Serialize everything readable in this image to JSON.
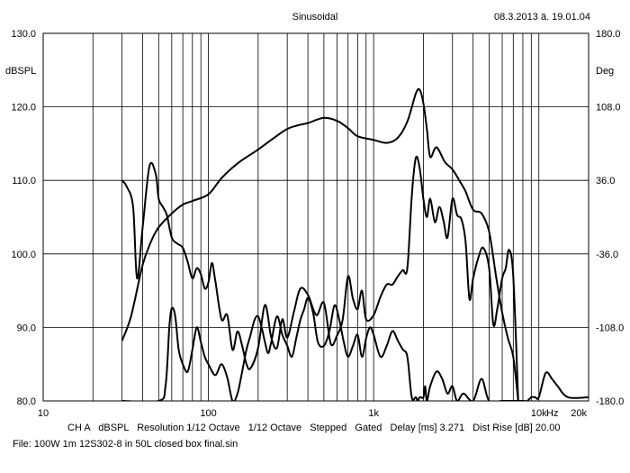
{
  "header": {
    "title": "Sinusoidal",
    "timestamp": "08.3.2013 ä. 19.01.04"
  },
  "footer": {
    "settings": "CH A   dBSPL   Resolution 1/12 Octave   1/12 Octave   Stepped   Gated   Delay [ms] 3.271   Dist Rise [dB] 20.00",
    "file": "File: 100W 1m 12S302-8 in 50L closed box final.sin"
  },
  "colors": {
    "background": "#ffffff",
    "grid": "#000000",
    "curves": "#000000"
  },
  "chart_data": {
    "type": "line",
    "title": "Sinusoidal",
    "x_scale": "log",
    "xlim": [
      10,
      20000
    ],
    "ylim": [
      80,
      130
    ],
    "y2lim": [
      -180,
      180
    ],
    "ylabel": "dBSPL",
    "y2label": "Deg",
    "xunit": "Hz",
    "x_tick_labels": [
      {
        "value": 10,
        "label": "10"
      },
      {
        "value": 100,
        "label": "100"
      },
      {
        "value": 1000,
        "label": "1k"
      },
      {
        "value": 10000,
        "label": "10k"
      },
      {
        "value": 20000,
        "label": "20k"
      }
    ],
    "y_tick_labels": [
      {
        "value": 80,
        "label": "80.0"
      },
      {
        "value": 90,
        "label": "90.0"
      },
      {
        "value": 100,
        "label": "100.0"
      },
      {
        "value": 110,
        "label": "110.0"
      },
      {
        "value": 120,
        "label": "120.0"
      },
      {
        "value": 130,
        "label": "130.0"
      }
    ],
    "y2_tick_labels": [
      {
        "value": -180,
        "label": "-180.0"
      },
      {
        "value": -108,
        "label": "-108.0"
      },
      {
        "value": -36,
        "label": "-36.0"
      },
      {
        "value": 36,
        "label": "36.0"
      },
      {
        "value": 108,
        "label": "108.0"
      },
      {
        "value": 180,
        "label": "180.0"
      }
    ],
    "grid": true,
    "series": [
      {
        "axis": "left",
        "x": [
          30,
          34,
          40,
          45,
          50,
          60,
          70,
          80,
          100,
          120,
          150,
          200,
          250,
          300,
          350,
          400,
          500,
          600,
          700,
          800,
          1000,
          1200,
          1400,
          1600,
          1800,
          1900,
          2000,
          2100,
          2200,
          2400,
          2700,
          3000,
          3300,
          3600,
          4000,
          4500,
          5000,
          5500,
          6000,
          6500,
          7000,
          7500
        ],
        "y": [
          88.2,
          91.5,
          98.5,
          101.7,
          103.6,
          105.5,
          106.7,
          107.2,
          108.1,
          110.3,
          112.3,
          114.2,
          115.8,
          117.0,
          117.5,
          117.8,
          118.5,
          118.1,
          117.1,
          116.0,
          115.5,
          115.1,
          115.8,
          118.0,
          121.8,
          122.3,
          120.5,
          117.0,
          113.2,
          114.5,
          112.5,
          111.5,
          110.0,
          108.5,
          106.0,
          105.5,
          103.0,
          97.0,
          92.0,
          88.5,
          86.0,
          80.0
        ]
      },
      {
        "axis": "right",
        "x": [
          30,
          32,
          35,
          37,
          40,
          44,
          48,
          50,
          53,
          56,
          60,
          65,
          70,
          75,
          80,
          85,
          90,
          95,
          100,
          105,
          110,
          120,
          130,
          140,
          150,
          160,
          170,
          180,
          200,
          220,
          240,
          260,
          280,
          300,
          330,
          360,
          400,
          450,
          500,
          550,
          600,
          650,
          700,
          750,
          800,
          850,
          900,
          1000,
          1100,
          1200,
          1300,
          1400,
          1500,
          1600,
          1700,
          1800,
          1900,
          2000,
          2100,
          2200,
          2350,
          2500,
          2650,
          2800,
          3000,
          3200,
          3400,
          3600,
          3800,
          4000,
          4300,
          4600,
          5000,
          5300,
          5600,
          6000,
          6300,
          6600,
          7000,
          7500
        ],
        "y": [
          36,
          30,
          10,
          -60,
          -10,
          50,
          42,
          18,
          10,
          2,
          -20,
          -26,
          -30,
          -44,
          -60,
          -50,
          -56,
          -70,
          -64,
          -45,
          -62,
          -100,
          -96,
          -130,
          -112,
          -126,
          -144,
          -148,
          -128,
          -86,
          -118,
          -128,
          -100,
          -118,
          -92,
          -70,
          -76,
          -96,
          -84,
          -124,
          -116,
          -100,
          -58,
          -80,
          -90,
          -72,
          -100,
          -96,
          -78,
          -66,
          -66,
          -58,
          -52,
          -50,
          20,
          58,
          48,
          18,
          0,
          18,
          -5,
          10,
          -4,
          -20,
          18,
          2,
          -2,
          -24,
          -80,
          -60,
          -40,
          -30,
          -50,
          -105,
          -90,
          -60,
          -50,
          -32,
          -58,
          -180
        ]
      },
      {
        "axis": "left",
        "x": [
          30,
          50,
          55,
          58,
          60,
          63,
          66,
          70,
          75,
          80,
          85,
          90,
          95,
          100,
          110,
          120,
          130,
          140,
          150,
          160,
          170,
          180,
          190,
          200,
          210,
          220,
          230,
          240,
          260,
          280,
          300,
          320,
          340,
          360,
          380,
          400,
          430,
          460,
          500,
          540,
          580,
          620,
          660,
          700,
          750,
          800,
          850,
          900,
          950,
          1000,
          1100,
          1200,
          1300,
          1400,
          1500,
          1600,
          1700,
          1800,
          1850,
          1900,
          2000,
          2050,
          2100,
          2200,
          2400,
          2600,
          2800,
          3000,
          3200,
          3500,
          4000,
          4500,
          5000,
          6000,
          8000,
          8500,
          9000,
          9500,
          10000,
          11000,
          12000,
          13000,
          15000,
          20000
        ],
        "y": [
          80,
          80,
          82,
          90,
          92.6,
          91.5,
          87,
          85,
          84,
          87,
          90,
          88,
          86,
          85,
          83.5,
          85,
          83.2,
          80,
          81,
          84,
          87,
          89,
          91,
          91.5,
          90,
          88,
          86.5,
          88,
          91.5,
          89,
          87.5,
          86,
          88.5,
          91,
          92.5,
          94,
          92,
          88,
          87.5,
          89.5,
          93,
          91,
          88,
          86,
          87.5,
          89,
          86,
          88.5,
          90,
          89,
          86,
          87.5,
          89.5,
          88.2,
          87,
          86,
          80.5,
          80.5,
          80,
          80.5,
          80.5,
          82,
          80,
          82,
          84,
          83,
          81,
          82,
          80,
          81,
          80,
          83,
          80,
          80,
          80,
          80,
          80.5,
          80.5,
          80.5,
          83.8,
          83,
          82,
          80.5,
          80.5
        ]
      }
    ]
  }
}
